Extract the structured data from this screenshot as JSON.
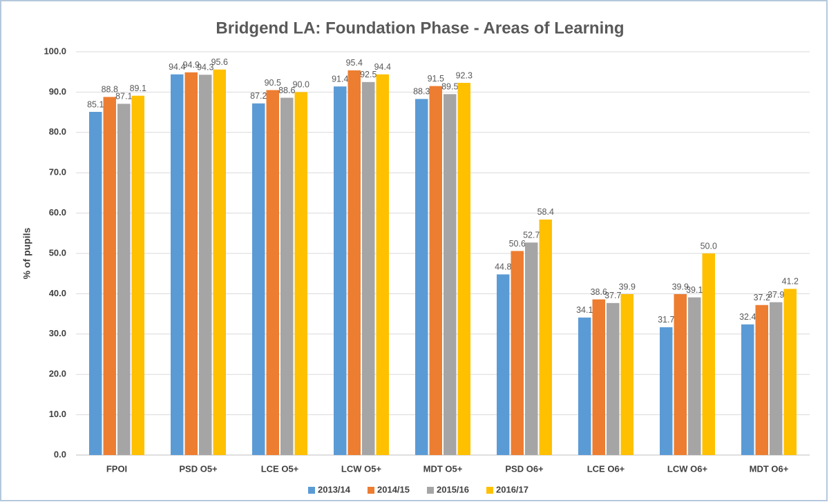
{
  "chart_data": {
    "type": "bar",
    "title": "Bridgend LA: Foundation Phase - Areas of Learning",
    "y_label": "% of pupils",
    "categories": [
      "FPOI",
      "PSD O5+",
      "LCE O5+",
      "LCW O5+",
      "MDT O5+",
      "PSD O6+",
      "LCE O6+",
      "LCW O6+",
      "MDT O6+"
    ],
    "series": [
      {
        "name": "2013/14",
        "color": "#5b9bd5",
        "values": [
          85.1,
          94.4,
          87.2,
          91.4,
          88.3,
          44.8,
          34.1,
          31.7,
          32.4
        ],
        "value_labels": [
          "85.1",
          "94.4",
          "87.2",
          "91.4",
          "88.3",
          "44.8",
          "34.1",
          "31.7",
          "32.4"
        ]
      },
      {
        "name": "2014/15",
        "color": "#ed7d31",
        "values": [
          88.8,
          94.9,
          90.5,
          95.4,
          91.5,
          50.6,
          38.6,
          39.9,
          37.2
        ],
        "value_labels": [
          "88.8",
          "94.9",
          "90.5",
          "95.4",
          "91.5",
          "50.6",
          "38.6",
          "39.9",
          "37.2"
        ]
      },
      {
        "name": "2015/16",
        "color": "#a5a5a5",
        "values": [
          87.1,
          94.3,
          88.6,
          92.5,
          89.5,
          52.7,
          37.7,
          39.1,
          37.9
        ],
        "value_labels": [
          "87.1",
          "94.3",
          "88.6",
          "92.5",
          "89.5",
          "52.7",
          "37.7",
          "39.1",
          "37.9"
        ]
      },
      {
        "name": "2016/17",
        "color": "#ffc000",
        "values": [
          89.1,
          95.6,
          90.0,
          94.4,
          92.3,
          58.4,
          39.9,
          50.0,
          41.2
        ],
        "value_labels": [
          "89.1",
          "95.6",
          "90.0",
          "94.4",
          "92.3",
          "58.4",
          "39.9",
          "50.0",
          "41.2"
        ]
      }
    ],
    "ylim": [
      0,
      100
    ],
    "yticks": [
      {
        "value": 0,
        "label": "0.0"
      },
      {
        "value": 10,
        "label": "10.0"
      },
      {
        "value": 20,
        "label": "20.0"
      },
      {
        "value": 30,
        "label": "30.0"
      },
      {
        "value": 40,
        "label": "40.0"
      },
      {
        "value": 50,
        "label": "50.0"
      },
      {
        "value": 60,
        "label": "60.0"
      },
      {
        "value": 70,
        "label": "70.0"
      },
      {
        "value": 80,
        "label": "80.0"
      },
      {
        "value": 90,
        "label": "90.0"
      },
      {
        "value": 100,
        "label": "100.0"
      }
    ],
    "grid": true,
    "legend": "bottom"
  }
}
